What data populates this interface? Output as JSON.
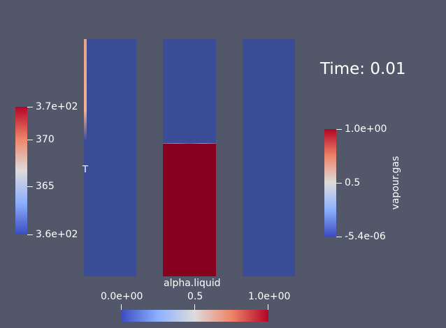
{
  "time_label": "Time: 0.01",
  "colorbars": {
    "temperature": {
      "title": "T",
      "ticks": [
        "3.7e+02",
        "370",
        "365",
        "3.6e+02"
      ]
    },
    "vapour_gas": {
      "title": "vapour.gas",
      "ticks": [
        "1.0e+00",
        "0.5",
        "-5.4e-06"
      ]
    },
    "alpha_liquid": {
      "title": "alpha.liquid",
      "ticks": [
        "0.0e+00",
        "0.5",
        "1.0e+00"
      ]
    }
  },
  "colormap": "Cool to Warm",
  "colors": {
    "background": "#525769",
    "cold": "#3b4cc0",
    "mid": "#dddcdc",
    "hot": "#b40426"
  }
}
